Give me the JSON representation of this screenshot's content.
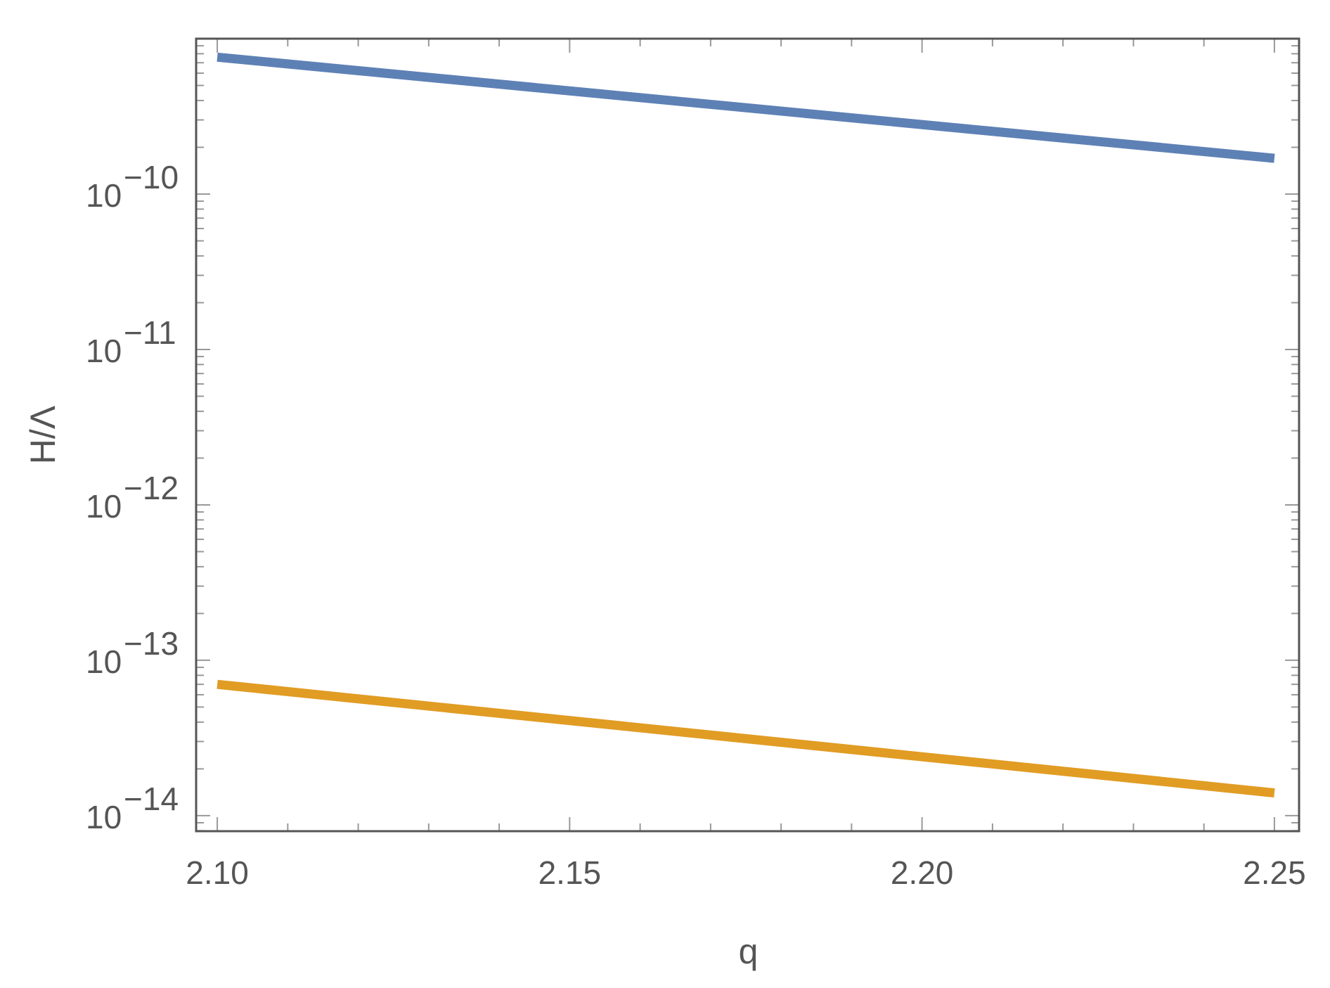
{
  "chart_data": {
    "type": "line",
    "xlabel": "q",
    "ylabel": "H/Λ",
    "xlim": [
      2.097,
      2.2535
    ],
    "ylim_log10": [
      -14.1,
      -9.0
    ],
    "y_scale": "log",
    "x_ticks": [
      {
        "value": 2.1,
        "label": "2.10"
      },
      {
        "value": 2.15,
        "label": "2.15"
      },
      {
        "value": 2.2,
        "label": "2.20"
      },
      {
        "value": 2.25,
        "label": "2.25"
      }
    ],
    "y_ticks": [
      {
        "exp": -10,
        "base": "10",
        "sup": "−10"
      },
      {
        "exp": -11,
        "base": "10",
        "sup": "−11"
      },
      {
        "exp": -12,
        "base": "10",
        "sup": "−12"
      },
      {
        "exp": -13,
        "base": "10",
        "sup": "−13"
      },
      {
        "exp": -14,
        "base": "10",
        "sup": "−14"
      }
    ],
    "series": [
      {
        "color": "#5E81B5",
        "x": [
          2.1,
          2.25
        ],
        "y": [
          7.6e-10,
          1.7e-10
        ]
      },
      {
        "color": "#E19C24",
        "x": [
          2.1,
          2.25
        ],
        "y": [
          7e-14,
          1.4e-14
        ]
      }
    ],
    "colors": {
      "frame": "#555555",
      "tick": "#999999"
    }
  }
}
